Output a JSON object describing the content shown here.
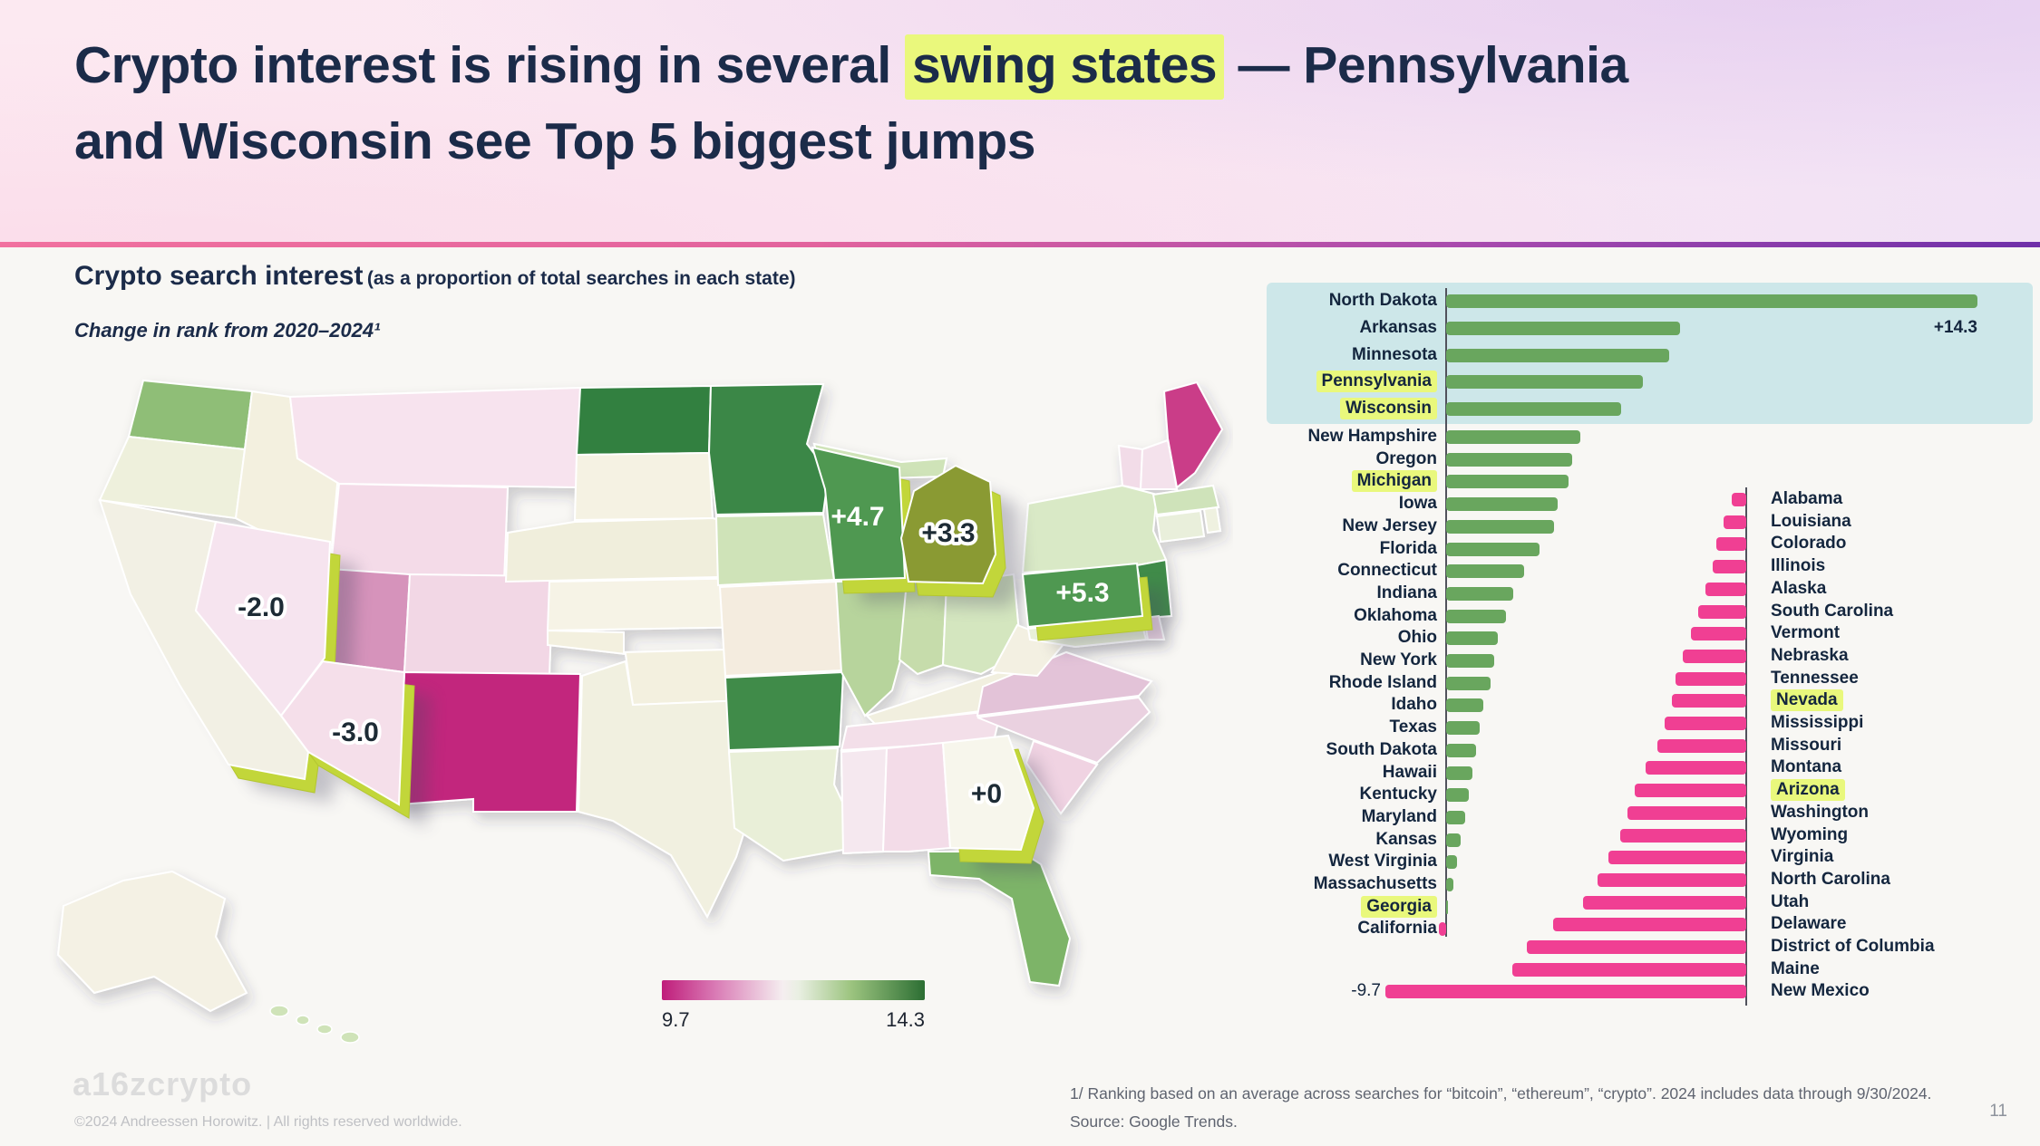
{
  "slide": {
    "title": {
      "pre": "Crypto interest is rising in several ",
      "highlight": "swing states",
      "post": " — Pennsylvania",
      "line2": "and Wisconsin see Top 5 biggest jumps"
    },
    "page_number": "11",
    "logo_text": "a16zcrypto",
    "copyright": "©2024 Andreessen Horowitz.  |  All rights reserved worldwide.",
    "footnote_line1": "1/ Ranking based on an average across searches for “bitcoin”, “ethereum”, “crypto”. 2024 includes data through 9/30/2024.",
    "footnote_line2": "Source: Google Trends."
  },
  "heading": {
    "title": "Crypto search interest",
    "suffix": "(as a proportion of total searches in each state)",
    "subtitle": "Change in rank from 2020–2024¹"
  },
  "legend": {
    "min_label": "9.7",
    "max_label": "14.3"
  },
  "map": {
    "callouts": [
      {
        "state": "NV",
        "label": "-2.0"
      },
      {
        "state": "AZ",
        "label": "-3.0"
      },
      {
        "state": "WI",
        "label": "+4.7"
      },
      {
        "state": "MI",
        "label": "+3.3"
      },
      {
        "state": "PA",
        "label": "+5.3"
      },
      {
        "state": "GA",
        "label": "+0"
      }
    ],
    "raised_states": [
      "CA",
      "NV",
      "AZ",
      "WI",
      "MI",
      "PA",
      "GA"
    ],
    "raised_side_color": "#c2d63a",
    "state_colors": {
      "WA": "#8fbe77",
      "OR": "#eef0dc",
      "ID": "#f3f0df",
      "MT": "#f7e3ee",
      "WY": "#f4dbe8",
      "NV": "#f6e4ef",
      "UT": "#d693bb",
      "CO": "#f2d7e5",
      "AZ": "#f5dfea",
      "NM": "#c2257d",
      "ND": "#33803f",
      "SD": "#f5f2e3",
      "NE": "#f0eedc",
      "KS": "#f6f3e6",
      "OK": "#f3f0df",
      "TX": "#f1f0e0",
      "MN": "#3b8747",
      "IA": "#cfe3b8",
      "MO": "#f4ecdf",
      "AR": "#3f8b49",
      "LA": "#e9efd8",
      "WI": "#4f9851",
      "IL": "#b7d49c",
      "MI": "#8a9a33",
      "MIUP": "#cfe3b8",
      "IN": "#c6dcab",
      "OH": "#d4e6bf",
      "KY": "#f1efdf",
      "TN": "#f3dfe9",
      "MS": "#f5e8ef",
      "AL": "#f3dce8",
      "GA": "#f7f6ec",
      "FL": "#7db468",
      "SC": "#f0d3e2",
      "NC": "#ead1e0",
      "VA": "#e3c3d8",
      "WV": "#f3f0e2",
      "PA": "#4f9851",
      "MD": "#e8f0d8",
      "DE": "#f0d9e6",
      "NJ": "#3f8b49",
      "NY": "#d9e9c6",
      "CT": "#e9efdb",
      "RI": "#eff1e0",
      "MA": "#cfe3ba",
      "VT": "#f2dce8",
      "NH": "#f4e2ec",
      "ME": "#ca3d88",
      "AK": "#f4f1e4",
      "HI": "#cfe3b8"
    }
  },
  "chart_data": {
    "type": "bar",
    "title": "Change in rank from 2020–2024",
    "orientation": "horizontal",
    "positive_color": "#69a65e",
    "negative_color": "#f03f93",
    "highlighted_labels": [
      "Pennsylvania",
      "Wisconsin",
      "Michigan",
      "Georgia",
      "Nevada",
      "Arizona"
    ],
    "top5_box": [
      "North Dakota",
      "Arkansas",
      "Minnesota",
      "Pennsylvania",
      "Wisconsin"
    ],
    "max_annotation": "+14.3",
    "min_annotation": "-9.7",
    "left_column": [
      {
        "state": "North Dakota",
        "value": 14.3
      },
      {
        "state": "Arkansas",
        "value": 6.3
      },
      {
        "state": "Minnesota",
        "value": 6.0
      },
      {
        "state": "Pennsylvania",
        "value": 5.3
      },
      {
        "state": "Wisconsin",
        "value": 4.7
      },
      {
        "state": "New Hampshire",
        "value": 3.6
      },
      {
        "state": "Oregon",
        "value": 3.4
      },
      {
        "state": "Michigan",
        "value": 3.3
      },
      {
        "state": "Iowa",
        "value": 3.0
      },
      {
        "state": "New Jersey",
        "value": 2.9
      },
      {
        "state": "Florida",
        "value": 2.5
      },
      {
        "state": "Connecticut",
        "value": 2.1
      },
      {
        "state": "Indiana",
        "value": 1.8
      },
      {
        "state": "Oklahoma",
        "value": 1.6
      },
      {
        "state": "Ohio",
        "value": 1.4
      },
      {
        "state": "New York",
        "value": 1.3
      },
      {
        "state": "Rhode Island",
        "value": 1.2
      },
      {
        "state": "Idaho",
        "value": 1.0
      },
      {
        "state": "Texas",
        "value": 0.9
      },
      {
        "state": "South Dakota",
        "value": 0.8
      },
      {
        "state": "Hawaii",
        "value": 0.7
      },
      {
        "state": "Kentucky",
        "value": 0.6
      },
      {
        "state": "Maryland",
        "value": 0.5
      },
      {
        "state": "Kansas",
        "value": 0.4
      },
      {
        "state": "West Virginia",
        "value": 0.3
      },
      {
        "state": "Massachusetts",
        "value": 0.2
      },
      {
        "state": "Georgia",
        "value": 0
      },
      {
        "state": "California",
        "value": -0.2
      }
    ],
    "right_column": [
      {
        "state": "Alabama",
        "value": -0.4
      },
      {
        "state": "Louisiana",
        "value": -0.6
      },
      {
        "state": "Colorado",
        "value": -0.8
      },
      {
        "state": "Illinois",
        "value": -0.9
      },
      {
        "state": "Alaska",
        "value": -1.1
      },
      {
        "state": "South Carolina",
        "value": -1.3
      },
      {
        "state": "Vermont",
        "value": -1.5
      },
      {
        "state": "Nebraska",
        "value": -1.7
      },
      {
        "state": "Tennessee",
        "value": -1.9
      },
      {
        "state": "Nevada",
        "value": -2.0
      },
      {
        "state": "Mississippi",
        "value": -2.2
      },
      {
        "state": "Missouri",
        "value": -2.4
      },
      {
        "state": "Montana",
        "value": -2.7
      },
      {
        "state": "Arizona",
        "value": -3.0
      },
      {
        "state": "Washington",
        "value": -3.2
      },
      {
        "state": "Wyoming",
        "value": -3.4
      },
      {
        "state": "Virginia",
        "value": -3.7
      },
      {
        "state": "North Carolina",
        "value": -4.0
      },
      {
        "state": "Utah",
        "value": -4.4
      },
      {
        "state": "Delaware",
        "value": -5.2
      },
      {
        "state": "District of Columbia",
        "value": -5.9
      },
      {
        "state": "Maine",
        "value": -6.3
      },
      {
        "state": "New Mexico",
        "value": -9.7
      }
    ]
  }
}
